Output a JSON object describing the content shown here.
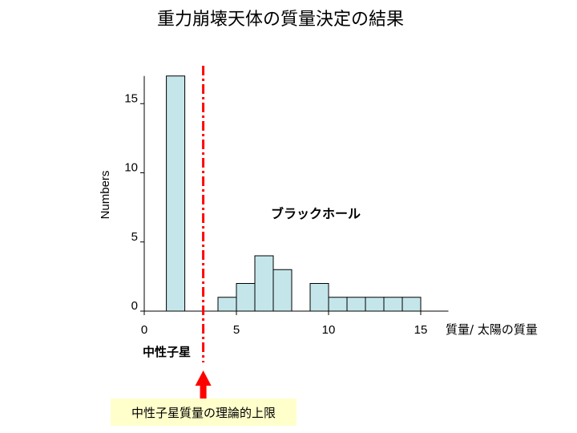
{
  "title": "重力崩壊天体の質量決定の結果",
  "chart_data": {
    "type": "bar",
    "ylabel": "Numbers",
    "xlabel": "質量/ 太陽の質量",
    "xlim": [
      0,
      16.5
    ],
    "ylim": [
      0,
      17
    ],
    "x_ticks": [
      0,
      5,
      10,
      15
    ],
    "y_ticks": [
      0,
      5,
      10,
      15
    ],
    "bin_width": 1.0,
    "bars": [
      {
        "x_start": 1.2,
        "x_end": 2.2,
        "value": 17
      },
      {
        "x_start": 4.0,
        "x_end": 5.0,
        "value": 1
      },
      {
        "x_start": 5.0,
        "x_end": 6.0,
        "value": 2
      },
      {
        "x_start": 6.0,
        "x_end": 7.0,
        "value": 4
      },
      {
        "x_start": 7.0,
        "x_end": 8.0,
        "value": 3
      },
      {
        "x_start": 9.0,
        "x_end": 10.0,
        "value": 2
      },
      {
        "x_start": 10.0,
        "x_end": 11.0,
        "value": 1
      },
      {
        "x_start": 11.0,
        "x_end": 12.0,
        "value": 1
      },
      {
        "x_start": 12.0,
        "x_end": 13.0,
        "value": 1
      },
      {
        "x_start": 13.0,
        "x_end": 14.0,
        "value": 1
      },
      {
        "x_start": 14.0,
        "x_end": 15.0,
        "value": 1
      }
    ],
    "reference_line": {
      "x": 3.2,
      "label": "中性子星質量の理論的上限"
    },
    "annotations": {
      "neutron_star": "中性子星",
      "black_hole": "ブラックホール"
    },
    "colors": {
      "bar_fill": "#c4e6ea",
      "bar_stroke": "#000000",
      "reference_line": "#ff0000",
      "label_box": "#ffffcc"
    },
    "grid": false
  }
}
